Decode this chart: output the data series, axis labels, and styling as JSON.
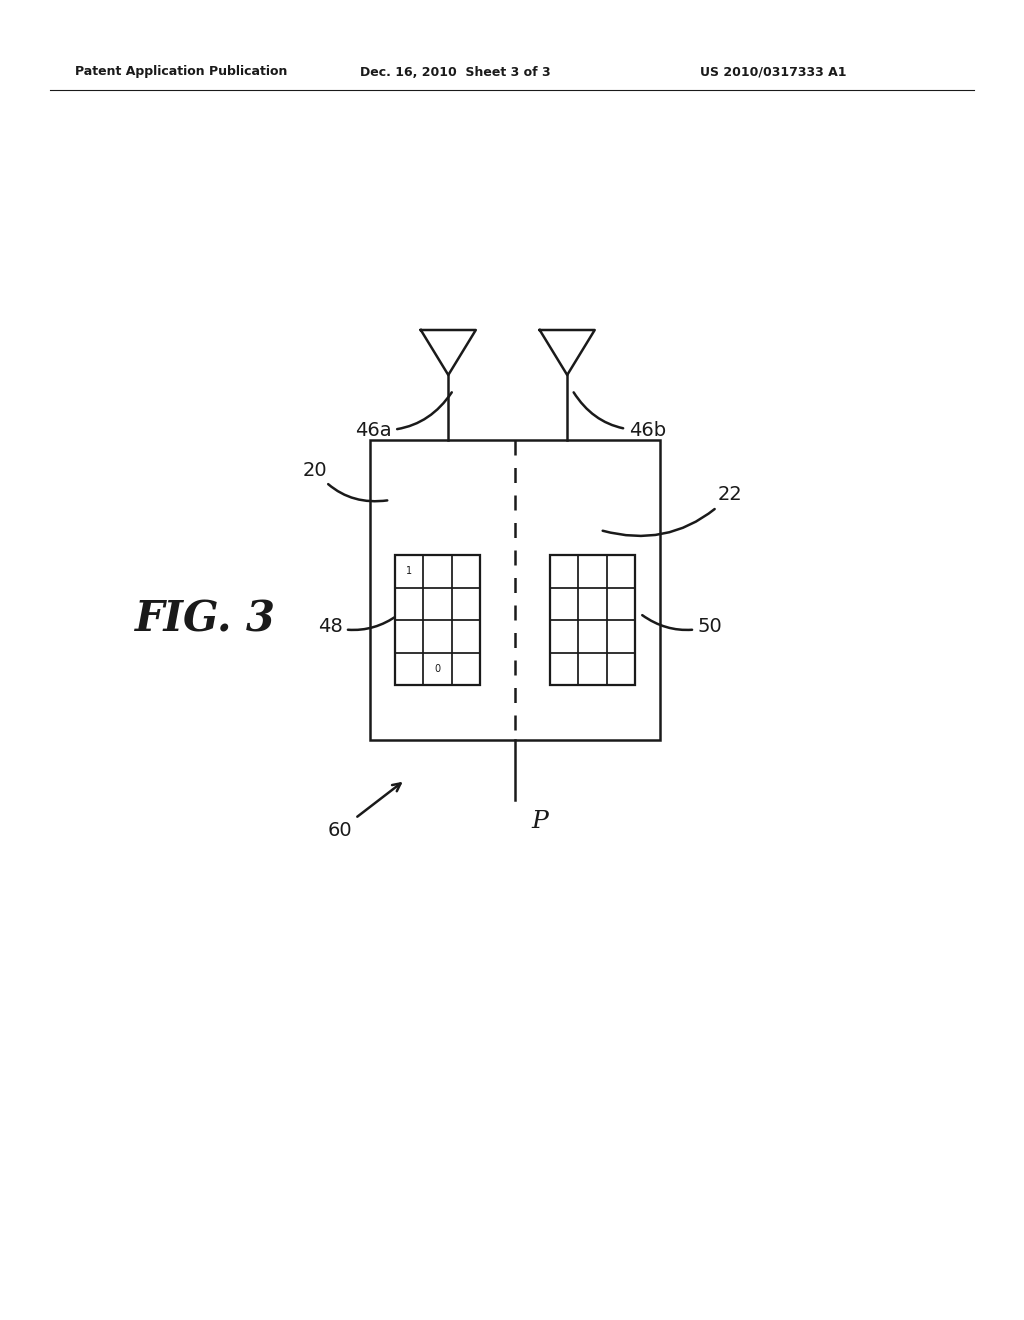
{
  "bg_color": "#ffffff",
  "header_left": "Patent Application Publication",
  "header_mid": "Dec. 16, 2010  Sheet 3 of 3",
  "header_right": "US 2010/0317333 A1",
  "fig_label": "FIG. 3",
  "line_color": "#1a1a1a",
  "text_color": "#1a1a1a",
  "label_20": "20",
  "label_22": "22",
  "label_46a": "46a",
  "label_46b": "46b",
  "label_48": "48",
  "label_50": "50",
  "label_60": "60",
  "label_P": "P",
  "font_size_labels": 14,
  "font_size_header": 9,
  "font_size_fig": 30
}
